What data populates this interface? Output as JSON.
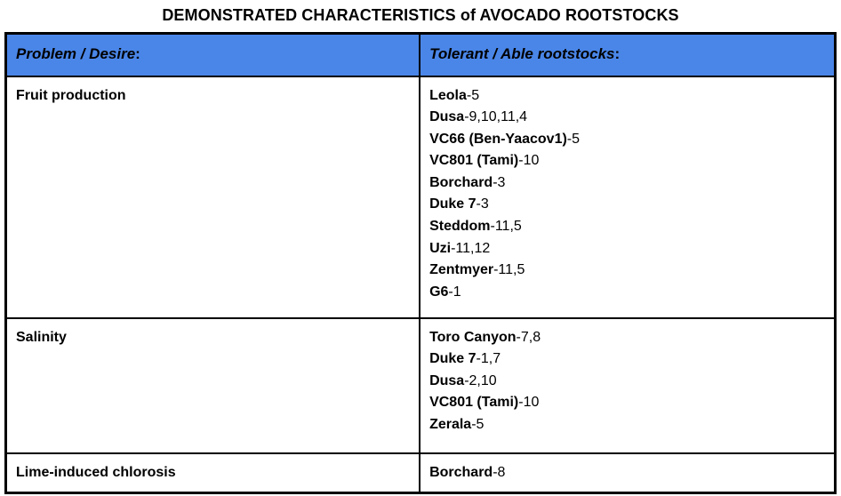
{
  "title": "DEMONSTRATED CHARACTERISTICS of AVOCADO ROOTSTOCKS",
  "colors": {
    "header_bg": "#4a86e8",
    "border": "#000000",
    "text": "#000000",
    "page_bg": "#ffffff"
  },
  "table": {
    "headers": [
      {
        "label": "Problem / Desire",
        "colon": ":"
      },
      {
        "label": "Tolerant / Able rootstocks",
        "colon": ":"
      }
    ],
    "rows": [
      {
        "problem": "Fruit production",
        "rootstocks": [
          {
            "name": "Leola",
            "refs": "-5"
          },
          {
            "name": "Dusa",
            "refs": "-9,10,11,4"
          },
          {
            "name": "VC66 (Ben-Yaacov1)",
            "refs": "-5"
          },
          {
            "name": "VC801 (Tami)",
            "refs": "-10"
          },
          {
            "name": "Borchard",
            "refs": "-3"
          },
          {
            "name": "Duke 7",
            "refs": "-3"
          },
          {
            "name": "Steddom",
            "refs": "-11,5"
          },
          {
            "name": "Uzi",
            "refs": "-11,12"
          },
          {
            "name": "Zentmyer",
            "refs": "-11,5"
          },
          {
            "name": "G6",
            "refs": "-1"
          }
        ]
      },
      {
        "problem": "Salinity",
        "rootstocks": [
          {
            "name": "Toro Canyon",
            "refs": "-7,8"
          },
          {
            "name": "Duke 7",
            "refs": "-1,7"
          },
          {
            "name": "Dusa",
            "refs": "-2,10"
          },
          {
            "name": "VC801 (Tami)",
            "refs": "-10"
          },
          {
            "name": "Zerala",
            "refs": "-5"
          }
        ]
      },
      {
        "problem": "Lime-induced chlorosis",
        "rootstocks": [
          {
            "name": "Borchard",
            "refs": "-8"
          }
        ]
      }
    ]
  }
}
